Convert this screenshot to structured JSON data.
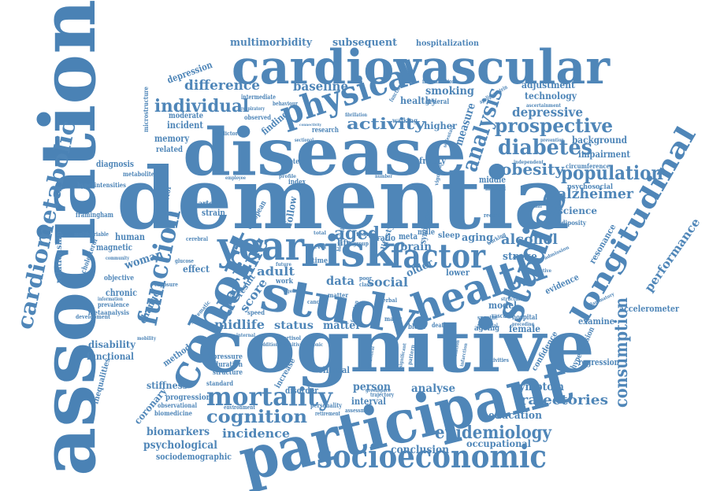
{
  "cloud": {
    "color": "#4f86b8",
    "words": [
      "association",
      "dementia",
      "cognitive",
      "disease",
      "participant",
      "cardiovascular",
      "study",
      "risk",
      "cohort",
      "health",
      "socioeconomic",
      "studies",
      "factor",
      "year",
      "longitudinal",
      "physical",
      "function",
      "mortality",
      "cardiometabolic",
      "analysis",
      "decline",
      "epidemiology",
      "prospective",
      "diabetes",
      "population",
      "individual",
      "activity",
      "consumption",
      "cognition",
      "obesity",
      "alzheimer",
      "trajectories",
      "difference",
      "alcohol",
      "aged",
      "incidence",
      "multimorbidity",
      "subsequent",
      "depressive",
      "baseline",
      "smoking",
      "performance",
      "midlife",
      "social",
      "status",
      "matter",
      "adult",
      "score",
      "data",
      "person",
      "analyse",
      "symptom",
      "education",
      "conclusion",
      "occupational",
      "biomarkers",
      "psychological",
      "sociodemographic",
      "coronary",
      "stiffness",
      "progression",
      "disability",
      "functional",
      "inequalities",
      "chronic",
      "woman",
      "human",
      "magnetic",
      "relationship",
      "diagnosis",
      "memory",
      "incident",
      "moderate",
      "related",
      "depression",
      "healthy",
      "higher",
      "measure",
      "technology",
      "adjustment",
      "hospitalization",
      "background",
      "impairment",
      "science",
      "resonance",
      "accelerometer",
      "examine",
      "confidence",
      "hypertension",
      "regression",
      "interval",
      "disorder",
      "clinical",
      "increase",
      "pressure",
      "duration",
      "structure",
      "standard",
      "change",
      "method",
      "effect",
      "heart",
      "result",
      "stroke",
      "evidence",
      "model",
      "female",
      "brain",
      "aging",
      "older",
      "lower",
      "sleep",
      "syndrome",
      "middle",
      "hospital",
      "ageing",
      "behavior",
      "strain",
      "arterial",
      "follow",
      "european",
      "finding",
      "frailty",
      "lifestyle",
      "psychosocial",
      "circumference",
      "framingham",
      "observational",
      "biomedicine",
      "hyperintensities",
      "metabolite",
      "microstructure",
      "objective",
      "prevalence",
      "metaanalysis",
      "development",
      "cholesterol",
      "multivariable",
      "intermediate",
      "behaviour",
      "observed",
      "predictor",
      "research",
      "protein",
      "index",
      "time",
      "work",
      "matter",
      "ratio",
      "meta",
      "male",
      "life",
      "walking",
      "general",
      "inflammation",
      "apolipoprotein",
      "ascertainment",
      "prevention",
      "adiposity",
      "national",
      "record",
      "vascular",
      "specific",
      "potential",
      "preceding",
      "structural",
      "inflammatory",
      "predictive",
      "admission",
      "activities",
      "trajectory",
      "environment",
      "assessment",
      "retirement",
      "personality",
      "blood",
      "death",
      "major",
      "pattern",
      "verbal",
      "cortisol",
      "systematic",
      "speed",
      "internal",
      "exposure",
      "cerebral",
      "glucose",
      "community",
      "information",
      "mobility",
      "cancer",
      "poor",
      "class",
      "biological",
      "employee",
      "profile",
      "number",
      "medical",
      "independent",
      "fibrillation",
      "respiratory",
      "functioning",
      "sectional",
      "connectivity",
      "level",
      "total",
      "test",
      "group",
      "greenspace",
      "limitation",
      "infarction",
      "significant",
      "behavioral",
      "additional",
      "positive",
      "chronic",
      "function",
      "working",
      "vigorous",
      "sedentary",
      "wave",
      "future",
      "genetic"
    ]
  }
}
